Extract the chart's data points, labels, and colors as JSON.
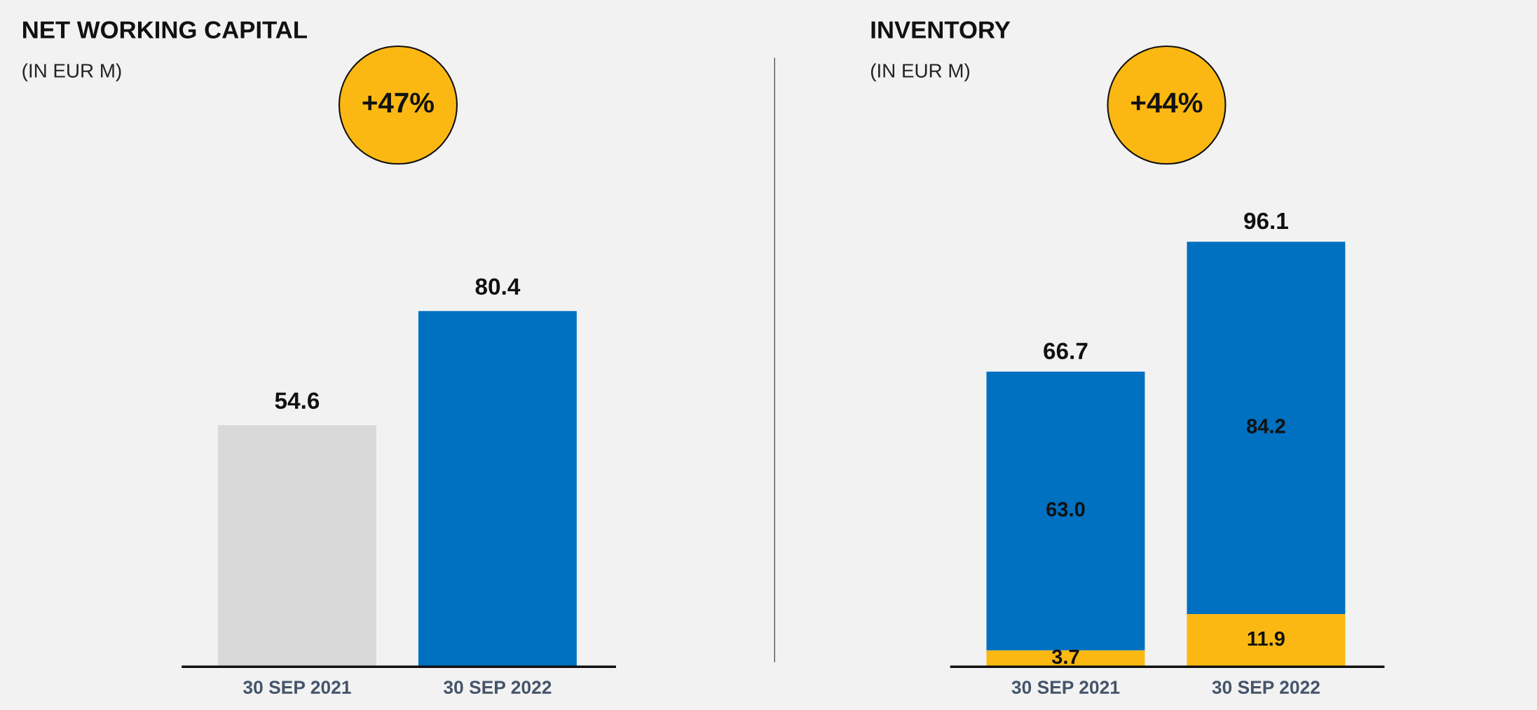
{
  "chart_data": [
    {
      "type": "bar",
      "title": "NET WORKING CAPITAL",
      "subtitle": "(IN EUR M)",
      "annotations": [
        "+47%"
      ],
      "categories": [
        "30 SEP 2021",
        "30 SEP 2022"
      ],
      "values": [
        54.6,
        80.4
      ],
      "colors": [
        "#d9d9d9",
        "#0070c0"
      ],
      "data_labels": true,
      "tick_labels": "x"
    },
    {
      "type": "bar",
      "title": "INVENTORY",
      "subtitle": "(IN EUR M)",
      "annotations": [
        "+44%"
      ],
      "categories": [
        "30 SEP 2021",
        "30 SEP 2022"
      ],
      "stacked": true,
      "series": [
        {
          "color": "#fbb813",
          "values": [
            3.7,
            11.9
          ],
          "value_labels": [
            "3.7",
            "11.9"
          ]
        },
        {
          "color": "#0070c0",
          "values": [
            63.0,
            84.2
          ],
          "value_labels": [
            "63.0",
            "84.2"
          ]
        }
      ],
      "totals": [
        "66.7",
        "96.1"
      ],
      "tick_labels": "x"
    }
  ]
}
